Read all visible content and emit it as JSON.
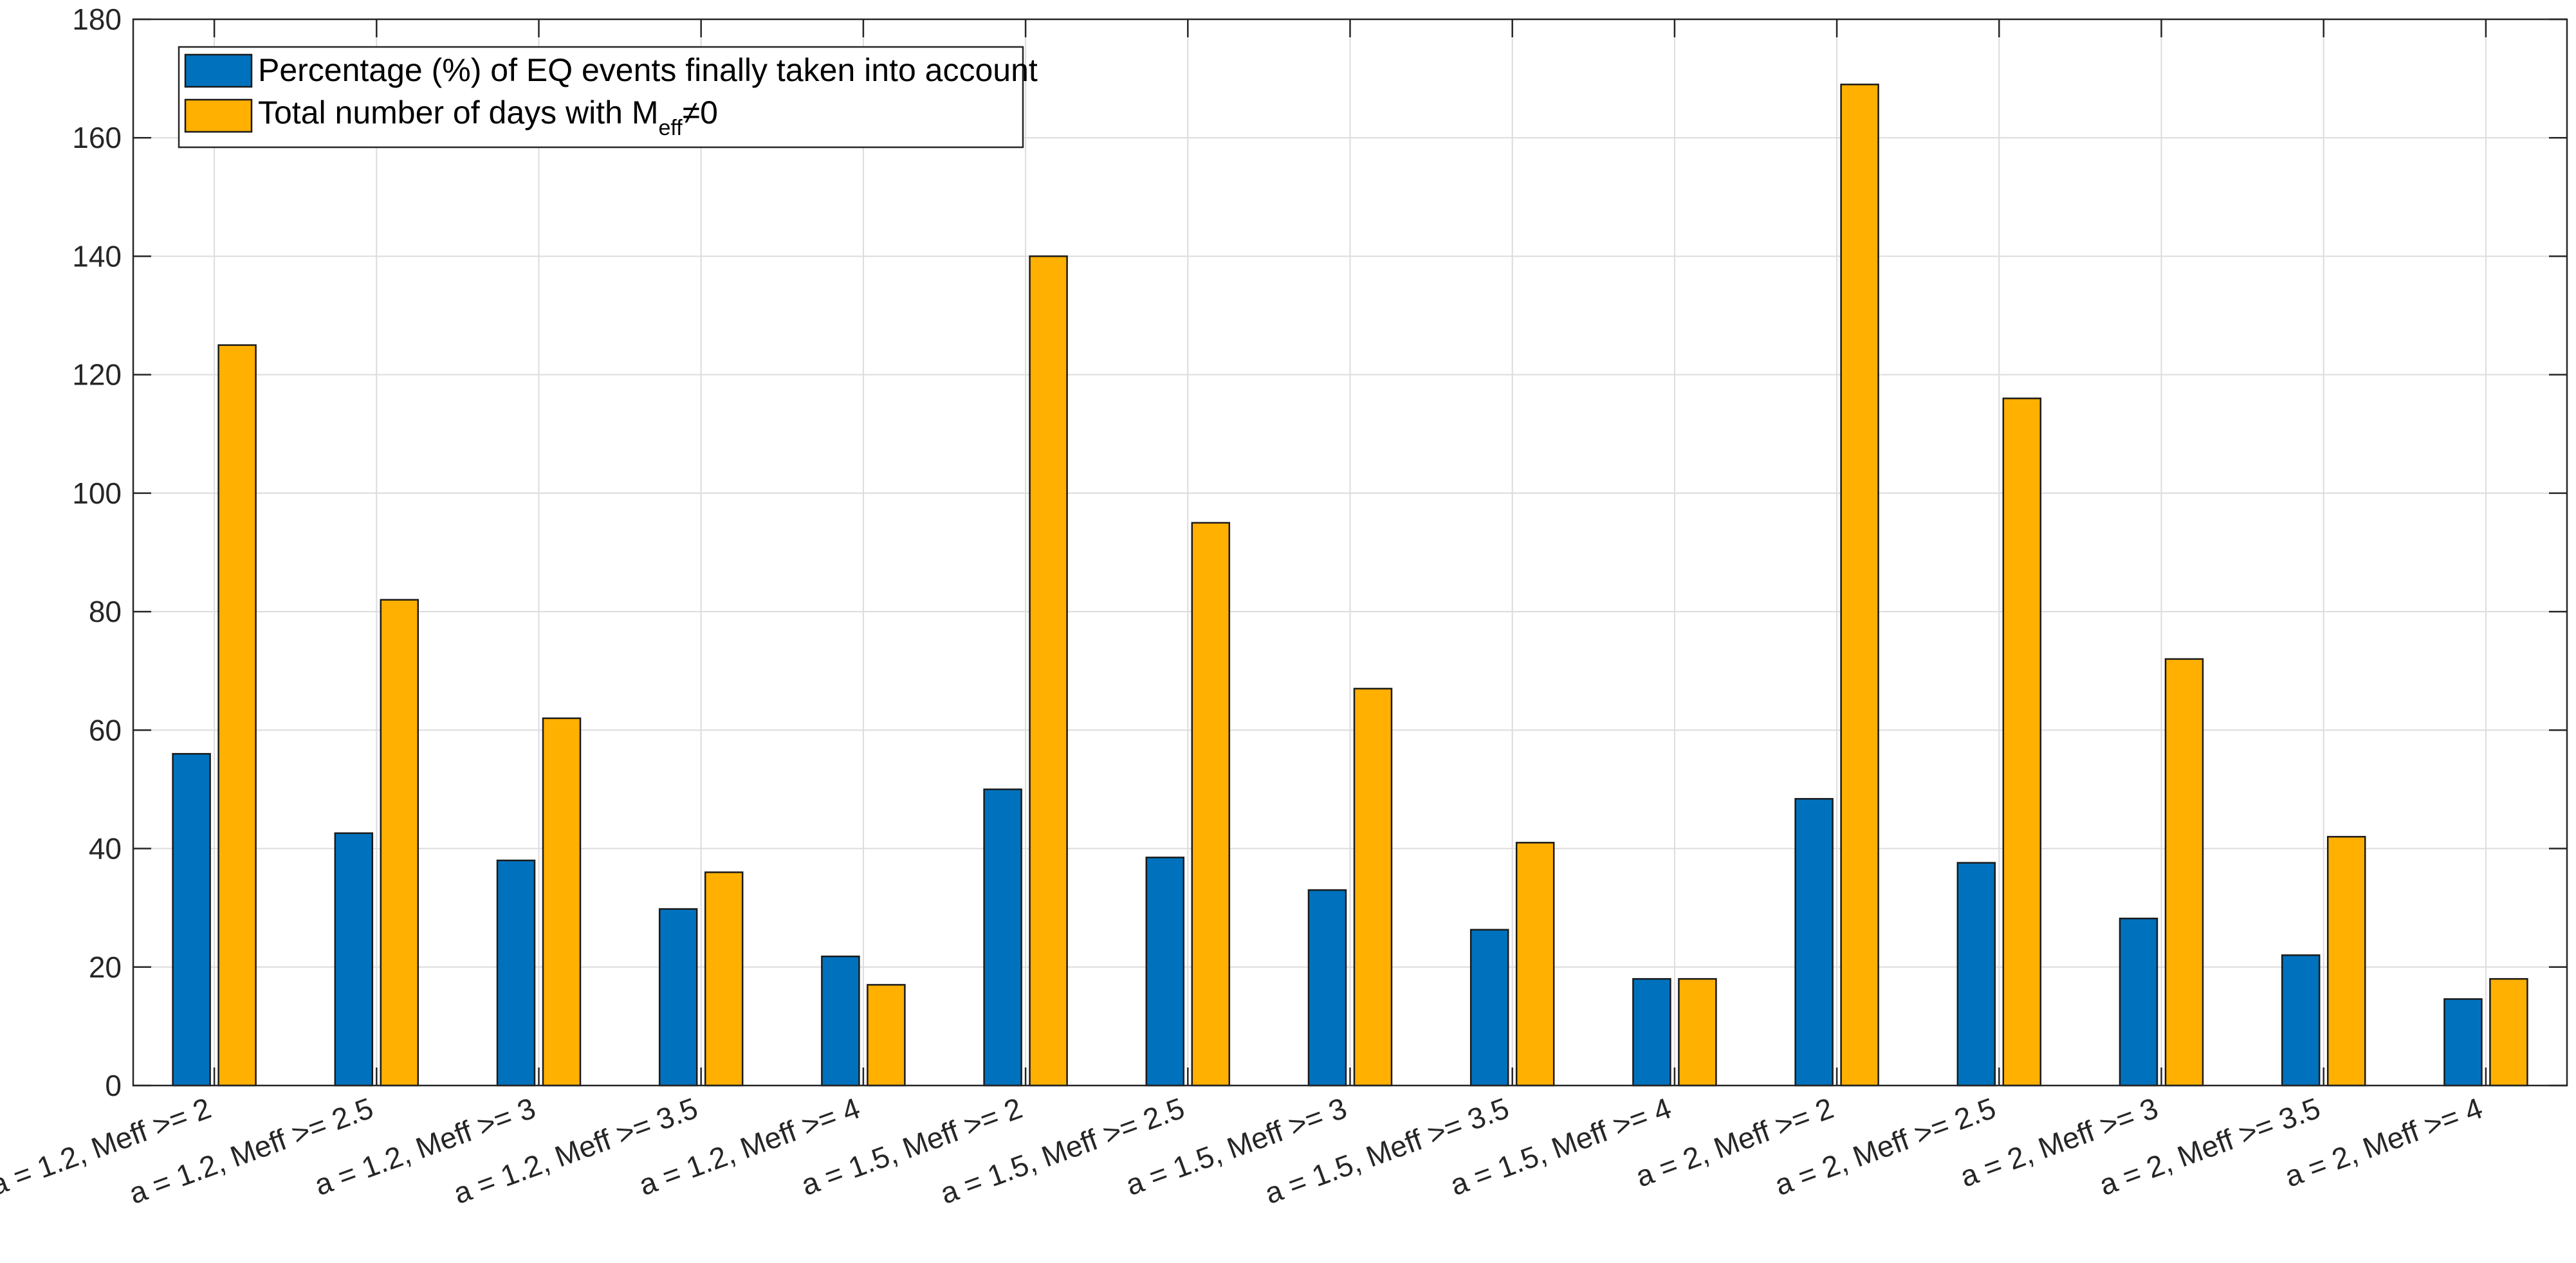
{
  "chart_data": {
    "type": "bar",
    "title": "",
    "xlabel": "",
    "ylabel": "",
    "ylim": [
      0,
      180
    ],
    "yticks": [
      0,
      20,
      40,
      60,
      80,
      100,
      120,
      140,
      160,
      180
    ],
    "grid": true,
    "legend_position": "top-left",
    "categories": [
      "a = 1.2, Meff >= 2",
      "a = 1.2, Meff >= 2.5",
      "a = 1.2, Meff >= 3",
      "a = 1.2, Meff >= 3.5",
      "a = 1.2, Meff >= 4",
      "a = 1.5, Meff >= 2",
      "a = 1.5, Meff >= 2.5",
      "a = 1.5, Meff >= 3",
      "a = 1.5, Meff >= 3.5",
      "a = 1.5, Meff >= 4",
      "a = 2, Meff >= 2",
      "a = 2, Meff >= 2.5",
      "a = 2, Meff >= 3",
      "a = 2, Meff >= 3.5",
      "a = 2, Meff >= 4"
    ],
    "series": [
      {
        "name": "Percentage (%) of EQ events finally taken into account",
        "color": "#0072BD",
        "values": [
          56,
          42.6,
          38,
          29.8,
          21.8,
          50,
          38.5,
          33,
          26.3,
          18,
          48.4,
          37.6,
          28.2,
          22,
          14.6
        ]
      },
      {
        "name_parts": {
          "main": "Total number of days with M",
          "sub": "eff",
          "tail": "≠0"
        },
        "color": "#FFB000",
        "values": [
          125,
          82,
          62,
          36,
          17,
          140,
          95,
          67,
          41,
          18,
          169,
          116,
          72,
          42,
          18
        ]
      }
    ]
  }
}
